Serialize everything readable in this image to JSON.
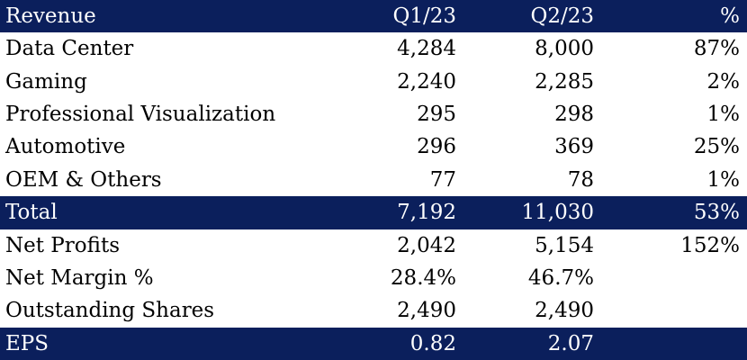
{
  "header": {
    "label": "Revenue",
    "q1": "Q1/23",
    "q2": "Q2/23",
    "pct": "%"
  },
  "rows": [
    {
      "label": "Data Center",
      "q1": "4,284",
      "q2": "8,000",
      "pct": "87%",
      "style": "normal"
    },
    {
      "label": "Gaming",
      "q1": "2,240",
      "q2": "2,285",
      "pct": "2%",
      "style": "normal"
    },
    {
      "label": "Professional Visualization",
      "q1": "295",
      "q2": "298",
      "pct": "1%",
      "style": "normal"
    },
    {
      "label": "Automotive",
      "q1": "296",
      "q2": "369",
      "pct": "25%",
      "style": "normal"
    },
    {
      "label": "OEM & Others",
      "q1": "77",
      "q2": "78",
      "pct": "1%",
      "style": "normal"
    },
    {
      "label": "Total",
      "q1": "7,192",
      "q2": "11,030",
      "pct": "53%",
      "style": "dark"
    },
    {
      "label": "Net Profits",
      "q1": "2,042",
      "q2": "5,154",
      "pct": "152%",
      "style": "normal"
    },
    {
      "label": "Net Margin %",
      "q1": "28.4%",
      "q2": "46.7%",
      "pct": "",
      "style": "normal"
    },
    {
      "label": "Outstanding Shares",
      "q1": "2,490",
      "q2": "2,490",
      "pct": "",
      "style": "normal"
    },
    {
      "label": "EPS",
      "q1": "0.82",
      "q2": "2.07",
      "pct": "",
      "style": "dark"
    }
  ],
  "colors": {
    "dark_row_background": "#0b1f5c",
    "dark_row_text": "#ffffff",
    "body_text": "#000000"
  }
}
